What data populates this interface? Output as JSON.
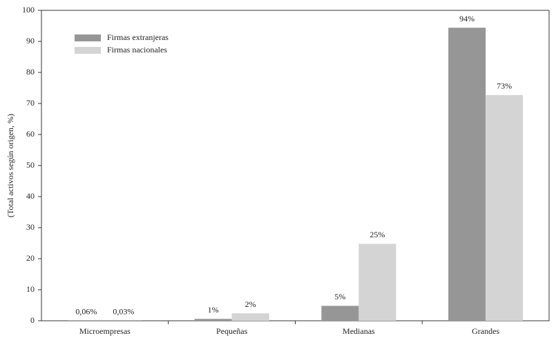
{
  "chart_data": {
    "type": "bar",
    "y_label": "(Total activos según origen, %)",
    "categories": [
      "Microempresas",
      "Pequeñas",
      "Medianas",
      "Grandes"
    ],
    "series": [
      {
        "name": "Firmas extranjeras",
        "color": "#969696",
        "values": [
          0.06,
          0.6,
          4.8,
          94.4
        ],
        "value_labels": [
          "0,06%",
          "1%",
          "5%",
          "94%"
        ]
      },
      {
        "name": "Firmas nacionales",
        "color": "#d4d4d4",
        "values": [
          0.03,
          2.4,
          24.8,
          72.7
        ],
        "value_labels": [
          "0,03%",
          "2%",
          "25%",
          "73%"
        ]
      }
    ],
    "ylim": [
      0,
      100
    ],
    "yticks": [
      0,
      10,
      20,
      30,
      40,
      50,
      60,
      70,
      80,
      90,
      100
    ],
    "grid": false
  }
}
